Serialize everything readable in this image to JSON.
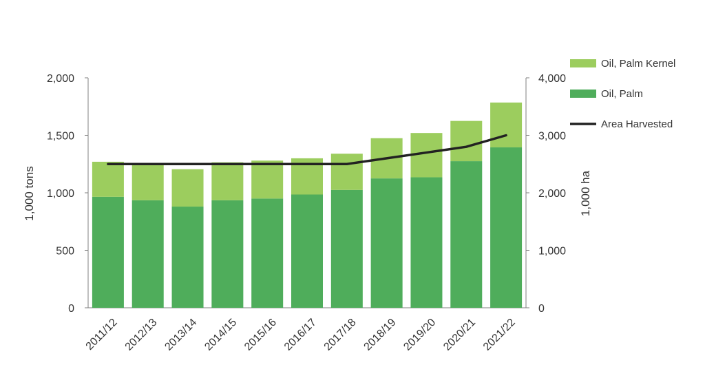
{
  "chart_data": {
    "type": "bar",
    "categories": [
      "2011/12",
      "2012/13",
      "2013/14",
      "2014/15",
      "2015/16",
      "2016/17",
      "2017/18",
      "2018/19",
      "2019/20",
      "2020/21",
      "2021/22"
    ],
    "series": [
      {
        "name": "Oil, Palm",
        "kind": "bar",
        "axis": "left",
        "color": "#4fad5b",
        "values": [
          965,
          935,
          880,
          935,
          950,
          985,
          1025,
          1125,
          1135,
          1275,
          1395
        ]
      },
      {
        "name": "Oil, Palm Kernel",
        "kind": "bar",
        "axis": "left",
        "color": "#9ccd5e",
        "values": [
          305,
          305,
          325,
          330,
          330,
          315,
          315,
          350,
          385,
          350,
          390
        ]
      },
      {
        "name": "Area Harvested",
        "kind": "line",
        "axis": "right",
        "color": "#222222",
        "values": [
          2500,
          2500,
          2500,
          2500,
          2500,
          2500,
          2500,
          2600,
          2700,
          2800,
          3000
        ]
      }
    ],
    "stacked": true,
    "ylabel": "1,000 tons",
    "y2label": "1,000 ha",
    "ylim": [
      0,
      2000
    ],
    "y2lim": [
      0,
      4000
    ],
    "yticks": [
      "0",
      "500",
      "1,000",
      "1,500",
      "2,000"
    ],
    "y2ticks": [
      "0",
      "1,000",
      "2,000",
      "3,000",
      "4,000"
    ],
    "legend_placement": "top-right",
    "legend": [
      "Oil, Palm Kernel",
      "Oil, Palm",
      "Area Harvested"
    ],
    "grid": false
  }
}
